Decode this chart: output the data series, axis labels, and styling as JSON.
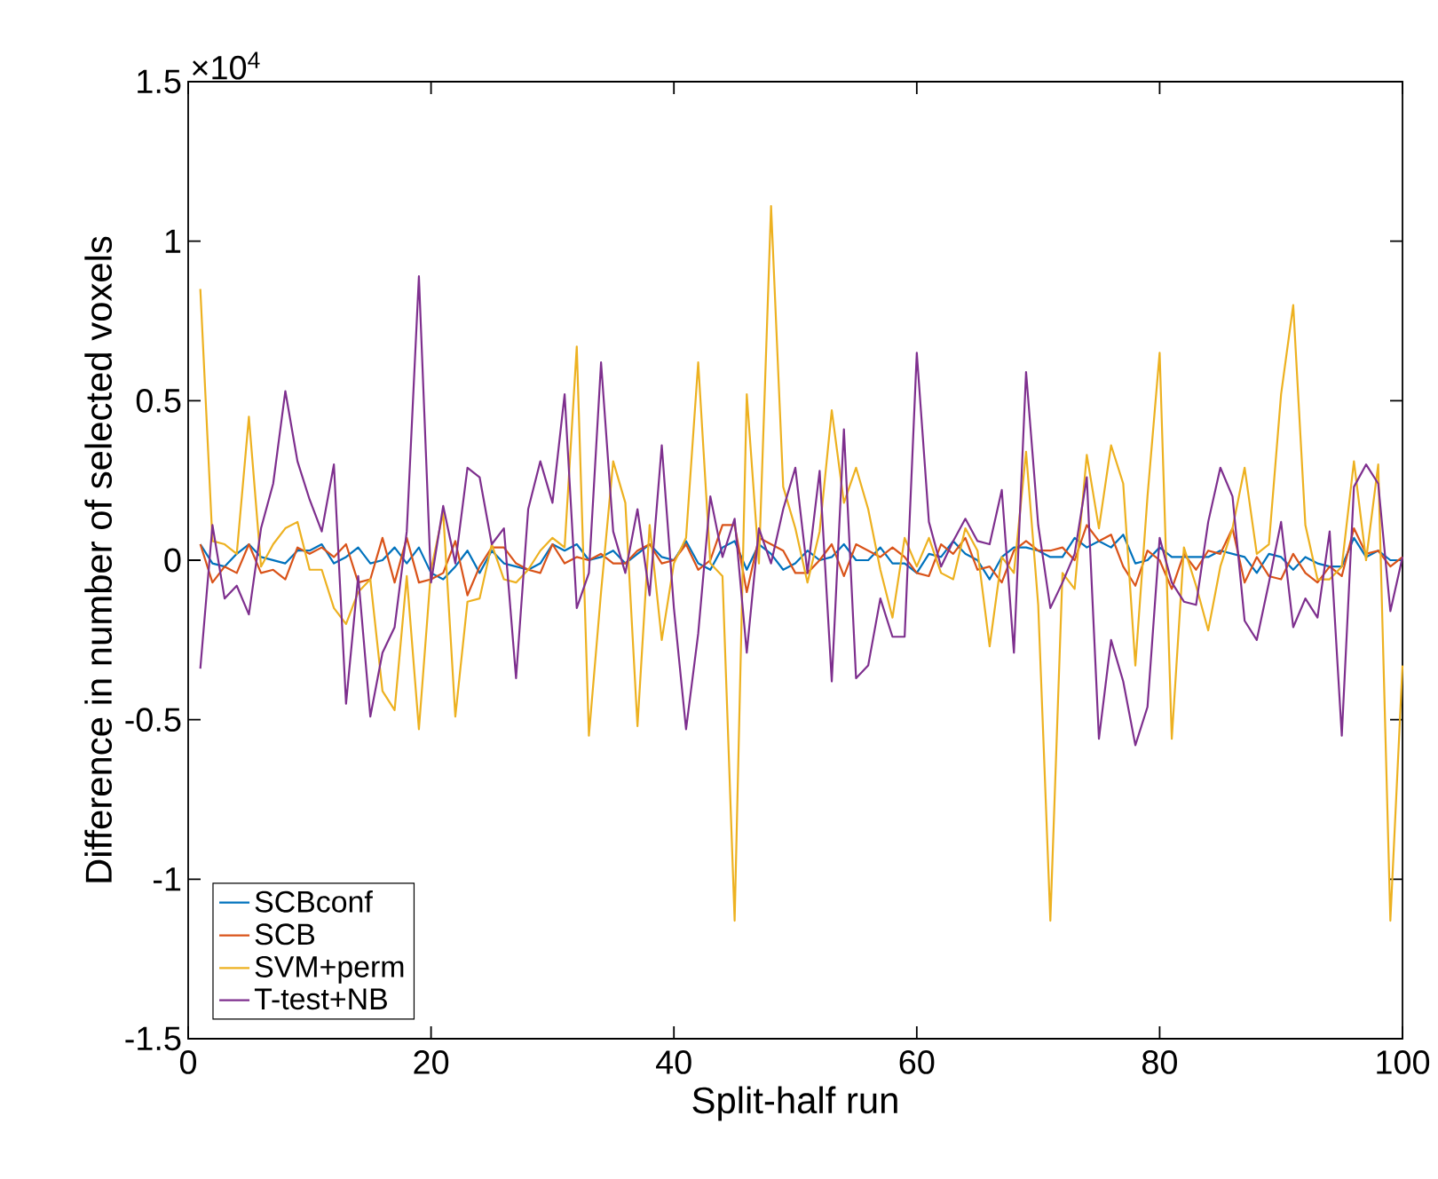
{
  "chart_data": {
    "type": "line",
    "xlabel": "Split-half run",
    "ylabel": "Difference in number of selected voxels",
    "annotations": [
      "×10$^{4}$"
    ],
    "x": [
      1,
      2,
      3,
      4,
      5,
      6,
      7,
      8,
      9,
      10,
      11,
      12,
      13,
      14,
      15,
      16,
      17,
      18,
      19,
      20,
      21,
      22,
      23,
      24,
      25,
      26,
      27,
      28,
      29,
      30,
      31,
      32,
      33,
      34,
      35,
      36,
      37,
      38,
      39,
      40,
      41,
      42,
      43,
      44,
      45,
      46,
      47,
      48,
      49,
      50,
      51,
      52,
      53,
      54,
      55,
      56,
      57,
      58,
      59,
      60,
      61,
      62,
      63,
      64,
      65,
      66,
      67,
      68,
      69,
      70,
      71,
      72,
      73,
      74,
      75,
      76,
      77,
      78,
      79,
      80,
      81,
      82,
      83,
      84,
      85,
      86,
      87,
      88,
      89,
      90,
      91,
      92,
      93,
      94,
      95,
      96,
      97,
      98,
      99,
      100
    ],
    "series": [
      {
        "name": "SCBconf",
        "color": "#0072bd",
        "values": [
          0.05,
          -0.01,
          -0.02,
          0.02,
          0.05,
          0.01,
          0,
          -0.01,
          0.03,
          0.03,
          0.05,
          -0.01,
          0.01,
          0.04,
          -0.01,
          0,
          0.04,
          -0.01,
          0.04,
          -0.04,
          -0.06,
          -0.02,
          0.03,
          -0.04,
          0.03,
          -0.01,
          -0.02,
          -0.03,
          -0.01,
          0.05,
          0.03,
          0.05,
          0,
          0.01,
          0.03,
          -0.01,
          0.02,
          0.05,
          0.01,
          0,
          0.06,
          -0.01,
          -0.03,
          0.04,
          0.06,
          -0.03,
          0.05,
          0.02,
          -0.03,
          -0.01,
          0.03,
          0,
          0.01,
          0.05,
          0,
          0,
          0.04,
          -0.01,
          -0.01,
          -0.04,
          0.02,
          0.01,
          0.06,
          0.02,
          0,
          -0.06,
          0.01,
          0.04,
          0.04,
          0.03,
          0.01,
          0.01,
          0.07,
          0.04,
          0.06,
          0.04,
          0.08,
          -0.01,
          0,
          0.04,
          0.01,
          0.01,
          0.01,
          0.01,
          0.03,
          0.02,
          0.01,
          -0.04,
          0.02,
          0.01,
          -0.03,
          0.01,
          -0.01,
          -0.02,
          -0.02,
          0.07,
          0.01,
          0.03,
          0,
          0
        ]
      },
      {
        "name": "SCB",
        "color": "#d95319",
        "values": [
          0.05,
          -0.07,
          -0.02,
          -0.04,
          0.05,
          -0.04,
          -0.03,
          -0.06,
          0.04,
          0.02,
          0.04,
          0.01,
          0.05,
          -0.07,
          -0.06,
          0.07,
          -0.07,
          0.07,
          -0.07,
          -0.06,
          -0.04,
          0.06,
          -0.11,
          -0.02,
          0.04,
          0.04,
          -0.01,
          -0.03,
          -0.04,
          0.05,
          -0.01,
          0.01,
          0,
          0.02,
          -0.01,
          -0.01,
          0.03,
          0.05,
          -0.01,
          0,
          0.05,
          -0.03,
          0,
          0.11,
          0.11,
          -0.1,
          0.07,
          0.05,
          0.03,
          -0.04,
          -0.04,
          0,
          0.05,
          -0.05,
          0.05,
          0.03,
          0.01,
          0.04,
          0.01,
          -0.04,
          -0.05,
          0.05,
          0.02,
          0.07,
          -0.03,
          -0.02,
          -0.07,
          0.03,
          0.06,
          0.03,
          0.03,
          0.04,
          0,
          0.11,
          0.06,
          0.08,
          -0.02,
          -0.08,
          0.03,
          0,
          -0.09,
          0.02,
          -0.03,
          0.03,
          0.02,
          0.1,
          -0.07,
          0.01,
          -0.05,
          -0.06,
          0.02,
          -0.04,
          -0.07,
          -0.02,
          -0.05,
          0.1,
          0.02,
          0.03,
          -0.02,
          0.01
        ]
      },
      {
        "name": "SVM+perm",
        "color": "#edb120",
        "values": [
          0.85,
          0.06,
          0.05,
          0.02,
          0.45,
          -0.02,
          0.05,
          0.1,
          0.12,
          -0.03,
          -0.03,
          -0.15,
          -0.2,
          -0.1,
          -0.06,
          -0.41,
          -0.47,
          -0.05,
          -0.53,
          -0.03,
          0.15,
          -0.49,
          -0.13,
          -0.12,
          0.05,
          -0.06,
          -0.07,
          -0.03,
          0.03,
          0.07,
          0.04,
          0.67,
          -0.55,
          -0.1,
          0.31,
          0.18,
          -0.52,
          0.11,
          -0.25,
          -0.01,
          0.07,
          0.62,
          -0.01,
          -0.05,
          -1.13,
          0.52,
          -0.01,
          1.11,
          0.23,
          0.1,
          -0.07,
          0.09,
          0.47,
          0.18,
          0.29,
          0.16,
          -0.03,
          -0.18,
          0.07,
          -0.02,
          0.07,
          -0.04,
          -0.06,
          0.1,
          0.03,
          -0.27,
          0.01,
          -0.04,
          0.34,
          -0.14,
          -1.13,
          -0.04,
          -0.09,
          0.33,
          0.1,
          0.36,
          0.24,
          -0.33,
          0.2,
          0.65,
          -0.56,
          0.04,
          -0.08,
          -0.22,
          -0.02,
          0.1,
          0.29,
          0.02,
          0.05,
          0.52,
          0.8,
          0.11,
          -0.06,
          -0.06,
          -0.02,
          0.31,
          0,
          0.3,
          -1.13,
          -0.33
        ]
      },
      {
        "name": "T-test+NB",
        "color": "#7e2f8e",
        "values": [
          -0.34,
          0.11,
          -0.12,
          -0.08,
          -0.17,
          0.1,
          0.24,
          0.53,
          0.31,
          0.19,
          0.09,
          0.3,
          -0.45,
          -0.05,
          -0.49,
          -0.29,
          -0.21,
          0.09,
          0.89,
          -0.07,
          0.17,
          -0.01,
          0.29,
          0.26,
          0.05,
          0.1,
          -0.37,
          0.16,
          0.31,
          0.18,
          0.52,
          -0.15,
          -0.04,
          0.62,
          0.09,
          -0.04,
          0.16,
          -0.11,
          0.36,
          -0.15,
          -0.53,
          -0.23,
          0.2,
          0.01,
          0.13,
          -0.29,
          0.1,
          -0.01,
          0.16,
          0.29,
          -0.04,
          0.28,
          -0.38,
          0.41,
          -0.37,
          -0.33,
          -0.12,
          -0.24,
          -0.24,
          0.65,
          0.12,
          -0.02,
          0.06,
          0.13,
          0.06,
          0.05,
          0.22,
          -0.29,
          0.59,
          0.11,
          -0.15,
          -0.07,
          0.02,
          0.26,
          -0.56,
          -0.25,
          -0.38,
          -0.58,
          -0.46,
          0.07,
          -0.07,
          -0.13,
          -0.14,
          0.12,
          0.29,
          0.2,
          -0.19,
          -0.25,
          -0.07,
          0.12,
          -0.21,
          -0.12,
          -0.18,
          0.09,
          -0.55,
          0.23,
          0.3,
          0.24,
          -0.16,
          0.01
        ]
      }
    ],
    "xlim": [
      0,
      100
    ],
    "ylim": [
      -1.5,
      1.5
    ],
    "xticks": [
      0,
      20,
      40,
      60,
      80,
      100
    ],
    "yticks": [
      -1.5,
      -1,
      -0.5,
      0,
      0.5,
      1,
      1.5
    ],
    "grid": false,
    "legend": "bottom left",
    "marker": "none",
    "line_style": "solid"
  }
}
